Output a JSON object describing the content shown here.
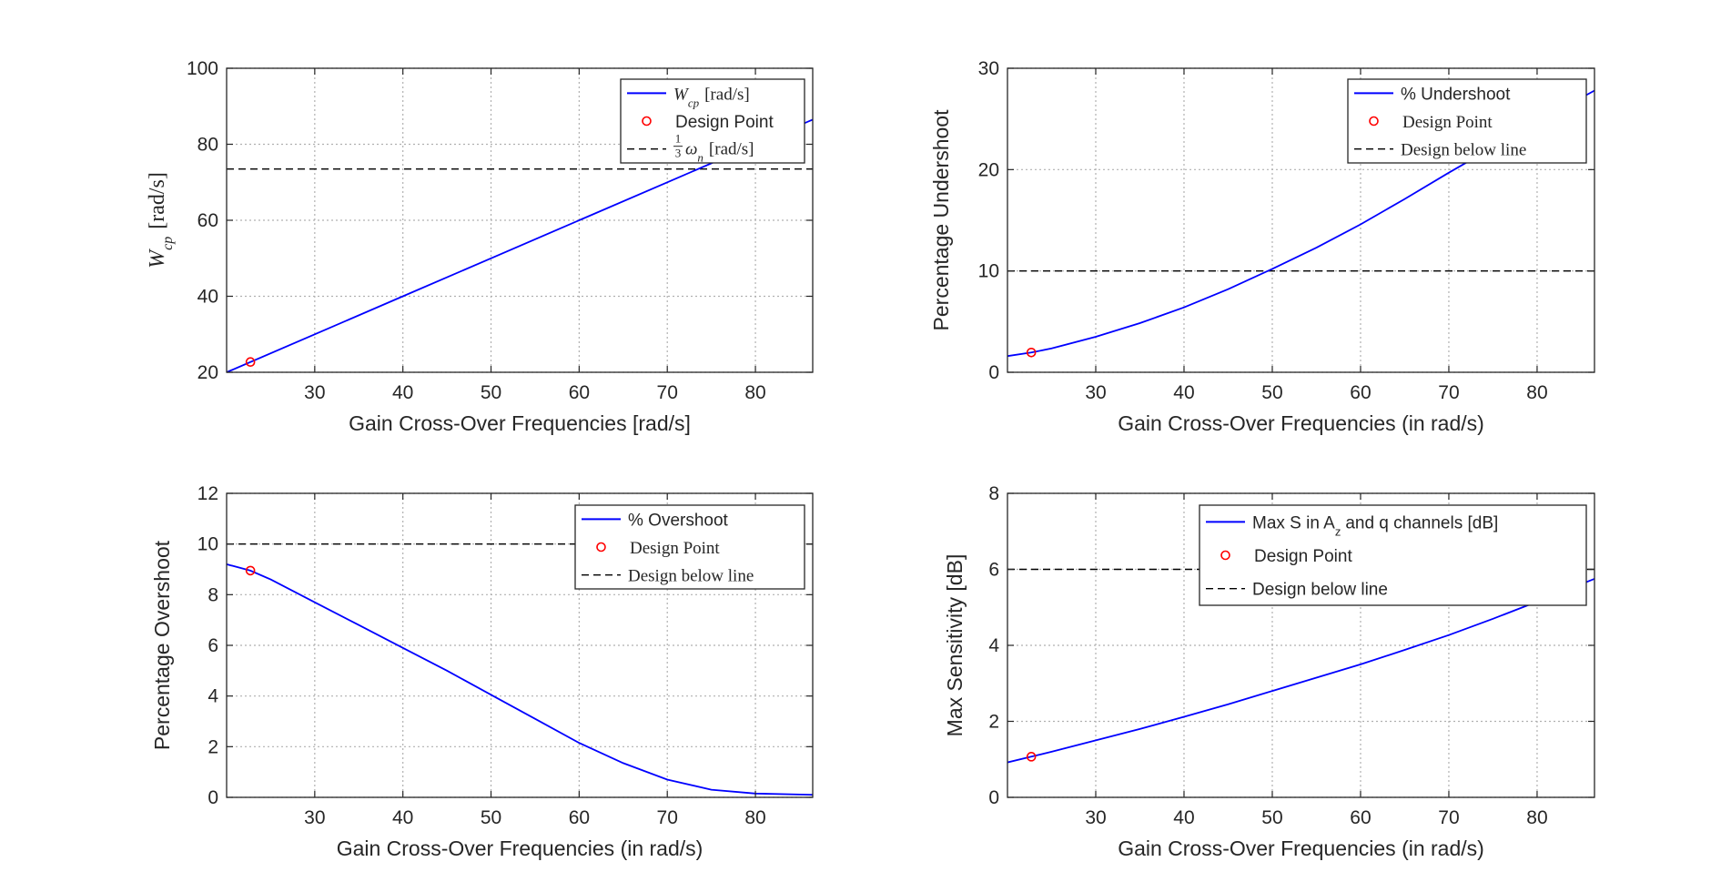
{
  "chart_data": [
    {
      "type": "line",
      "xlabel": "Gain Cross-Over Frequencies [rad/s]",
      "ylabel_main": "W",
      "ylabel_sub": "cp",
      "ylabel_unit": "[rad/s]",
      "xlim": [
        20,
        86.5
      ],
      "ylim": [
        20,
        100
      ],
      "xticks": [
        30,
        40,
        50,
        60,
        70,
        80
      ],
      "yticks": [
        20,
        40,
        60,
        80,
        100
      ],
      "grid": true,
      "legend_position": "top-right",
      "series": [
        {
          "name": "W_cp [rad/s]",
          "color": "#0000ff",
          "style": "solid",
          "x": [
            20,
            30,
            40,
            50,
            60,
            70,
            80,
            86.5
          ],
          "y": [
            20,
            30,
            40,
            50,
            60,
            70,
            80,
            86.5
          ]
        }
      ],
      "design_point": {
        "x": 22.7,
        "y": 22.7,
        "color": "#ff0000"
      },
      "reference_line": {
        "y": 73.5,
        "color": "#000000"
      },
      "legend": {
        "line_main": "W",
        "line_sub": "cp",
        "line_unit": "[rad/s]",
        "point": "Design Point",
        "ref_frac_num": "1",
        "ref_frac_den": "3",
        "ref_main": "ω",
        "ref_sub": "n",
        "ref_unit": "[rad/s]"
      }
    },
    {
      "type": "line",
      "xlabel": "Gain Cross-Over Frequencies (in rad/s)",
      "ylabel": "Percentage Undershoot",
      "xlim": [
        20,
        86.5
      ],
      "ylim": [
        0,
        30
      ],
      "xticks": [
        30,
        40,
        50,
        60,
        70,
        80
      ],
      "yticks": [
        0,
        10,
        20,
        30
      ],
      "grid": true,
      "legend_position": "top-right",
      "series": [
        {
          "name": "% Undershoot",
          "color": "#0000ff",
          "style": "solid",
          "x": [
            20,
            22.7,
            25,
            30,
            35,
            40,
            45,
            50,
            55,
            60,
            65,
            70,
            75,
            80,
            86.5
          ],
          "y": [
            1.6,
            1.95,
            2.35,
            3.5,
            4.85,
            6.4,
            8.2,
            10.2,
            12.3,
            14.6,
            17.1,
            19.7,
            22.2,
            24.7,
            27.8
          ]
        }
      ],
      "design_point": {
        "x": 22.7,
        "y": 1.95,
        "color": "#ff0000"
      },
      "reference_line": {
        "y": 10,
        "color": "#000000"
      },
      "legend": {
        "line": "% Undershoot",
        "point": "Design Point",
        "ref": "Design below line"
      }
    },
    {
      "type": "line",
      "xlabel": "Gain Cross-Over Frequencies (in rad/s)",
      "ylabel": "Percentage Overshoot",
      "xlim": [
        20,
        86.5
      ],
      "ylim": [
        0,
        12
      ],
      "xticks": [
        30,
        40,
        50,
        60,
        70,
        80
      ],
      "yticks": [
        0,
        2,
        4,
        6,
        8,
        10,
        12
      ],
      "grid": true,
      "legend_position": "top-right",
      "series": [
        {
          "name": "% Overshoot",
          "color": "#0000ff",
          "style": "solid",
          "x": [
            20,
            22.7,
            25,
            30,
            35,
            40,
            45,
            50,
            55,
            60,
            65,
            70,
            75,
            80,
            86.5
          ],
          "y": [
            9.2,
            8.95,
            8.6,
            7.7,
            6.8,
            5.9,
            5.0,
            4.05,
            3.1,
            2.15,
            1.35,
            0.7,
            0.3,
            0.15,
            0.1
          ]
        }
      ],
      "design_point": {
        "x": 22.7,
        "y": 8.95,
        "color": "#ff0000"
      },
      "reference_line": {
        "y": 10,
        "color": "#000000"
      },
      "legend": {
        "line": "% Overshoot",
        "point": "Design Point",
        "ref": "Design below line"
      }
    },
    {
      "type": "line",
      "xlabel": "Gain Cross-Over Frequencies (in rad/s)",
      "ylabel": "Max Sensitivity [dB]",
      "xlim": [
        20,
        86.5
      ],
      "ylim": [
        0,
        8
      ],
      "xticks": [
        30,
        40,
        50,
        60,
        70,
        80
      ],
      "yticks": [
        0,
        2,
        4,
        6,
        8
      ],
      "grid": true,
      "legend_position": "top-right",
      "series": [
        {
          "name": "Max S in A_z and q channels [dB]",
          "color": "#0000ff",
          "style": "solid",
          "x": [
            20,
            22.7,
            25,
            30,
            35,
            40,
            45,
            50,
            55,
            60,
            65,
            70,
            75,
            80,
            86.5
          ],
          "y": [
            0.92,
            1.07,
            1.2,
            1.5,
            1.8,
            2.12,
            2.45,
            2.8,
            3.15,
            3.5,
            3.88,
            4.27,
            4.7,
            5.15,
            5.75
          ]
        }
      ],
      "design_point": {
        "x": 22.7,
        "y": 1.07,
        "color": "#ff0000"
      },
      "reference_line": {
        "y": 6,
        "color": "#000000"
      },
      "legend": {
        "line_a": "Max S in A",
        "line_sub": "z",
        "line_b": "and q channels [dB]",
        "point": "Design Point",
        "ref": "Design below line"
      }
    }
  ]
}
